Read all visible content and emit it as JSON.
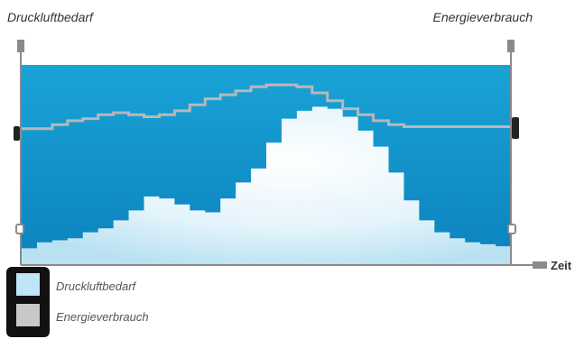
{
  "chart_data": {
    "type": "area",
    "title_left": "Druckluftbedarf",
    "title_right": "Energieverbrauch",
    "xlabel": "Zeit",
    "ylabel": "",
    "grid": false,
    "legend_placement": "bottom-left",
    "series": [
      {
        "name": "Druckluftbedarf",
        "kind": "area",
        "color": "#d6eef9",
        "values": [
          0.08,
          0.11,
          0.12,
          0.13,
          0.16,
          0.18,
          0.22,
          0.27,
          0.34,
          0.33,
          0.3,
          0.27,
          0.26,
          0.33,
          0.41,
          0.48,
          0.61,
          0.73,
          0.77,
          0.79,
          0.78,
          0.74,
          0.67,
          0.59,
          0.46,
          0.32,
          0.22,
          0.16,
          0.13,
          0.11,
          0.1,
          0.09,
          0.09
        ]
      },
      {
        "name": "Energieverbrauch",
        "kind": "line",
        "color": "#b8b8b8",
        "values": [
          0.68,
          0.68,
          0.7,
          0.72,
          0.73,
          0.75,
          0.76,
          0.75,
          0.74,
          0.75,
          0.77,
          0.8,
          0.83,
          0.85,
          0.87,
          0.89,
          0.9,
          0.9,
          0.89,
          0.86,
          0.82,
          0.78,
          0.75,
          0.72,
          0.7,
          0.69,
          0.69,
          0.69,
          0.69,
          0.69,
          0.69,
          0.69,
          0.69
        ]
      }
    ]
  },
  "colors": {
    "sky_top": "#1aa3d6",
    "sky_bottom": "#0c82be",
    "axis": "#8a8a8a",
    "area_fill": "#e4f4fb"
  },
  "legend": {
    "items": [
      {
        "label": "Druckluftbedarf",
        "swatch_color": "#bfe6f8"
      },
      {
        "label": "Energieverbrauch",
        "swatch_color": "#c8c8c8"
      }
    ]
  }
}
